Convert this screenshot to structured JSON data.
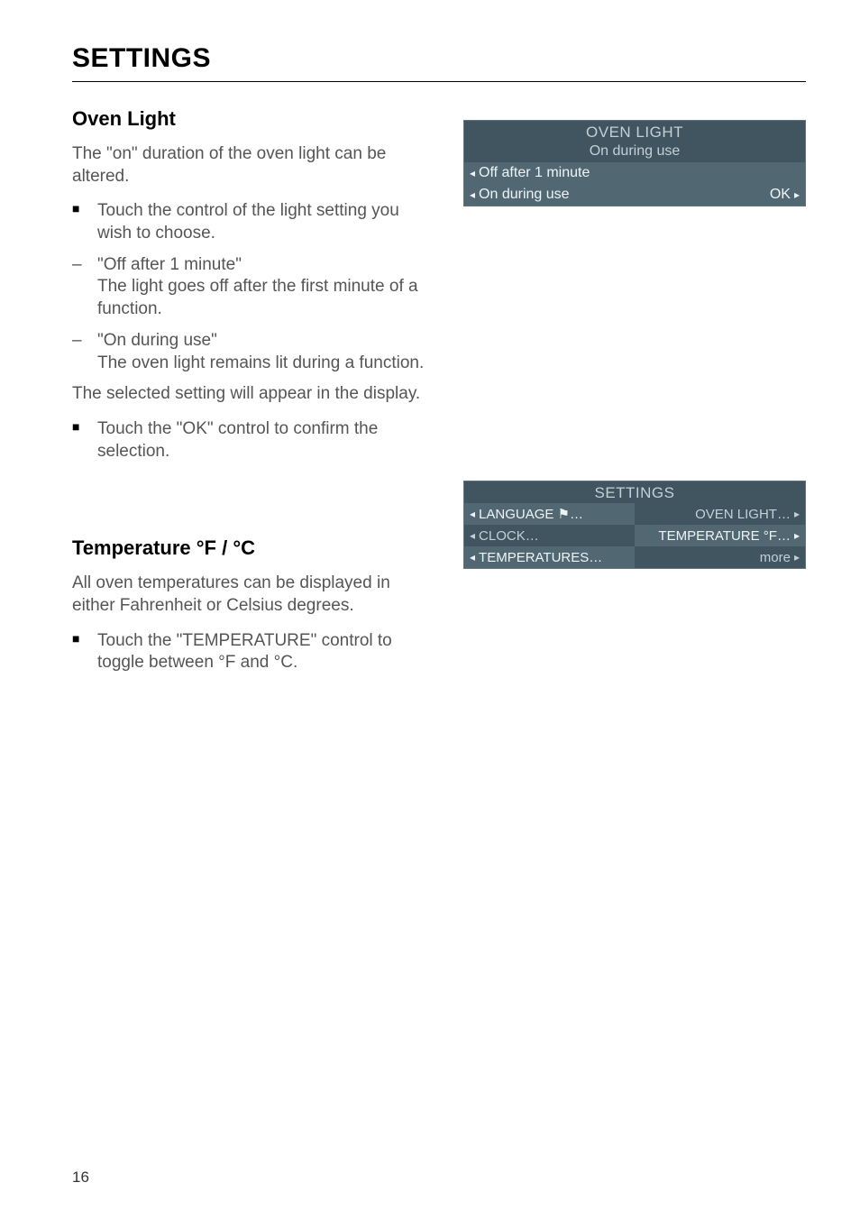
{
  "page": {
    "title": "SETTINGS",
    "number": "16"
  },
  "colors": {
    "panel_dark_bg": "#405560",
    "panel_dark_fg": "#c3d0d6",
    "panel_light_bg": "#516873",
    "panel_light_fg": "#eef4f6",
    "body_text": "#555555",
    "heading_text": "#000000",
    "rule": "#000000"
  },
  "section1": {
    "heading": "Oven Light",
    "intro": "The \"on\" duration of the oven light can be altered.",
    "items": [
      {
        "marker": "square",
        "text": "Touch the control of the light setting you wish to choose."
      },
      {
        "marker": "dash",
        "text": "\"Off after 1 minute\"",
        "sub": "The light goes off after the first minute of a function."
      },
      {
        "marker": "dash",
        "text": "\"On during use\"",
        "sub": "The oven light remains lit during a function."
      }
    ],
    "after": "The selected setting will appear in the display.",
    "confirm": {
      "marker": "square",
      "text": "Touch the \"OK\" control to confirm the selection."
    }
  },
  "section2": {
    "heading": "Temperature °F / °C",
    "intro": "All oven temperatures can be displayed in either Fahrenheit or Celsius degrees.",
    "items": [
      {
        "marker": "square",
        "text": "Touch the \"TEMPERATURE\" control to toggle between °F and °C."
      }
    ]
  },
  "ovenLightPanel": {
    "title": "OVEN LIGHT",
    "subtitle": "On during use",
    "rows": [
      {
        "left_tri": "◂",
        "label": "Off after 1 minute",
        "right": "",
        "right_tri": "",
        "shade": "lighter"
      },
      {
        "left_tri": "◂",
        "label": "On during use",
        "right": "OK",
        "right_tri": "▸",
        "shade": "lighter"
      }
    ]
  },
  "settingsPanel": {
    "title": "SETTINGS",
    "rows": [
      {
        "l_tri": "◂",
        "l_label": "LANGUAGE ⚑…",
        "l_shade": "lighter",
        "r_label": "OVEN LIGHT…",
        "r_tri": "▸",
        "r_shade": "darker"
      },
      {
        "l_tri": "◂",
        "l_label": "CLOCK…",
        "l_shade": "darker",
        "r_label": "TEMPERATURE °F…",
        "r_tri": "▸",
        "r_shade": "lighter"
      },
      {
        "l_tri": "◂",
        "l_label": "TEMPERATURES…",
        "l_shade": "lighter",
        "r_label": "more",
        "r_tri": "▸",
        "r_shade": "darker"
      }
    ]
  }
}
